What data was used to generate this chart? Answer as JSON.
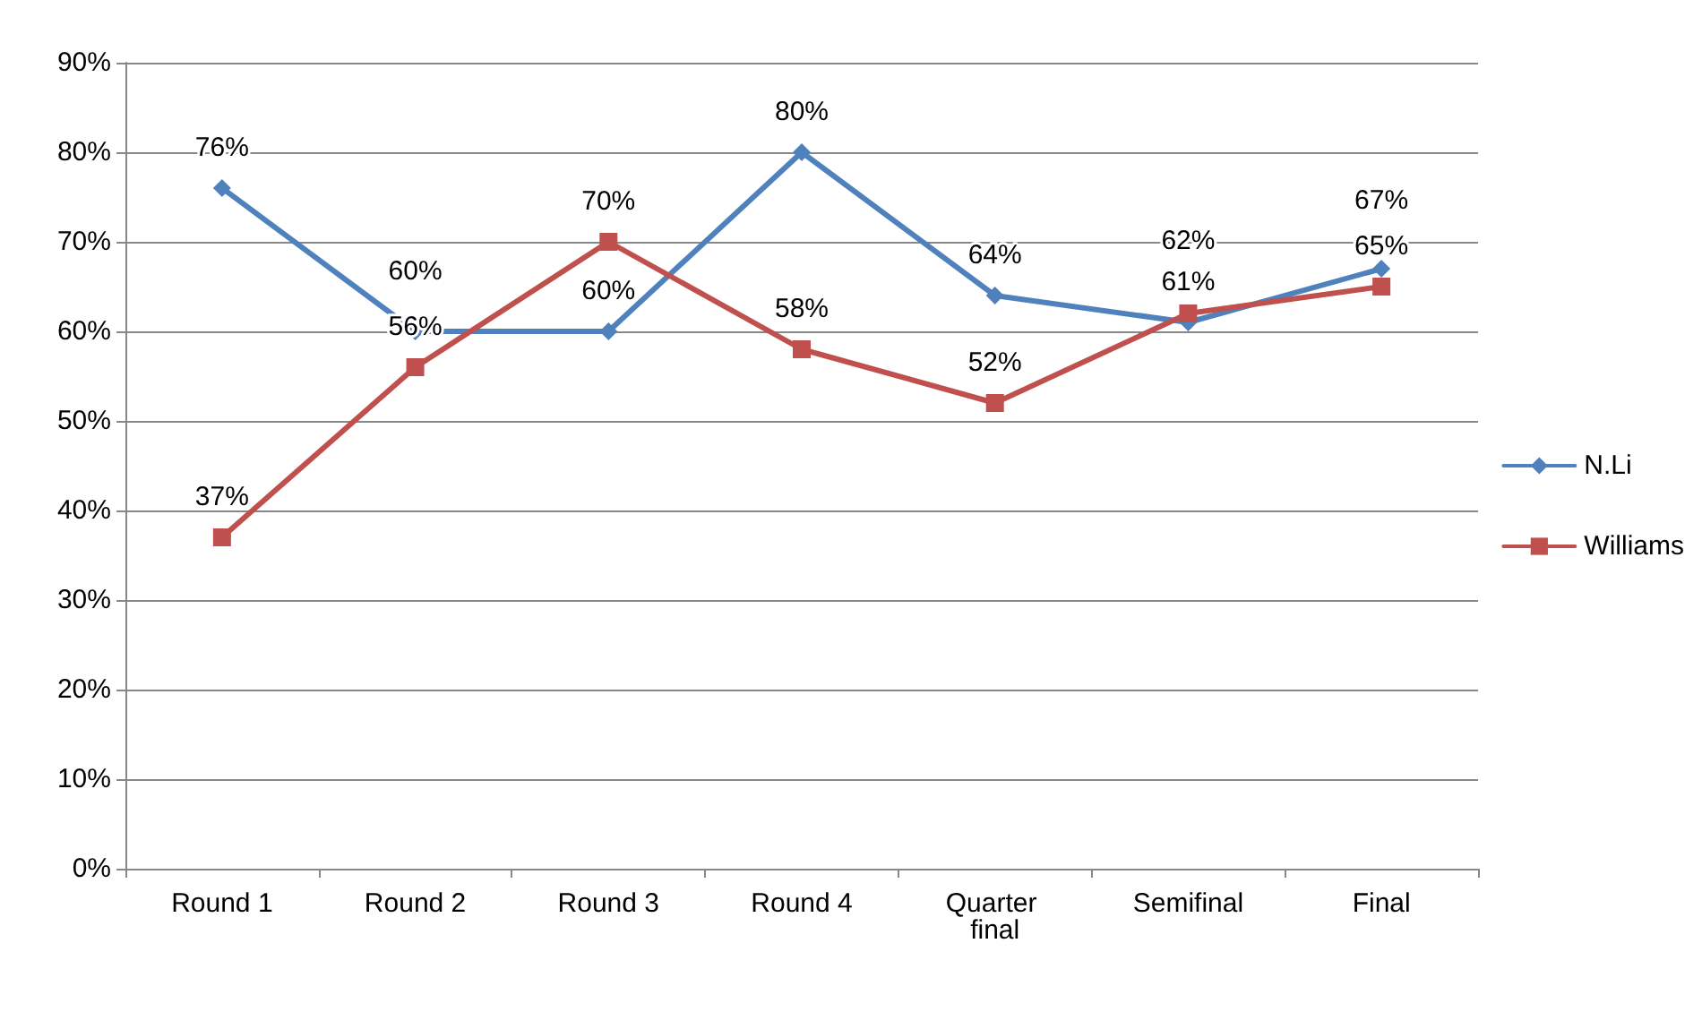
{
  "chart_data": {
    "type": "line",
    "categories": [
      "Round 1",
      "Round 2",
      "Round 3",
      "Round 4",
      "Quarter final",
      "Semifinal",
      "Final"
    ],
    "series": [
      {
        "name": "N.Li",
        "color": "#4f81bd",
        "marker": "diamond",
        "values": [
          76,
          60,
          60,
          80,
          64,
          61,
          67
        ],
        "value_labels": [
          "76%",
          "60%",
          "60%",
          "80%",
          "64%",
          "61%",
          "67%"
        ]
      },
      {
        "name": "Williams",
        "color": "#c0504d",
        "marker": "square",
        "values": [
          37,
          56,
          70,
          58,
          52,
          62,
          65
        ],
        "value_labels": [
          "37%",
          "56%",
          "70%",
          "58%",
          "52%",
          "62%",
          "65%"
        ]
      }
    ],
    "ylim": [
      0,
      90
    ],
    "yticks": [
      {
        "value": 0,
        "label": "0%"
      },
      {
        "value": 10,
        "label": "10%"
      },
      {
        "value": 20,
        "label": "20%"
      },
      {
        "value": 30,
        "label": "30%"
      },
      {
        "value": 40,
        "label": "40%"
      },
      {
        "value": 50,
        "label": "50%"
      },
      {
        "value": 60,
        "label": "60%"
      },
      {
        "value": 70,
        "label": "70%"
      },
      {
        "value": 80,
        "label": "80%"
      },
      {
        "value": 90,
        "label": "90%"
      }
    ],
    "grid": "y",
    "legend": "right"
  }
}
